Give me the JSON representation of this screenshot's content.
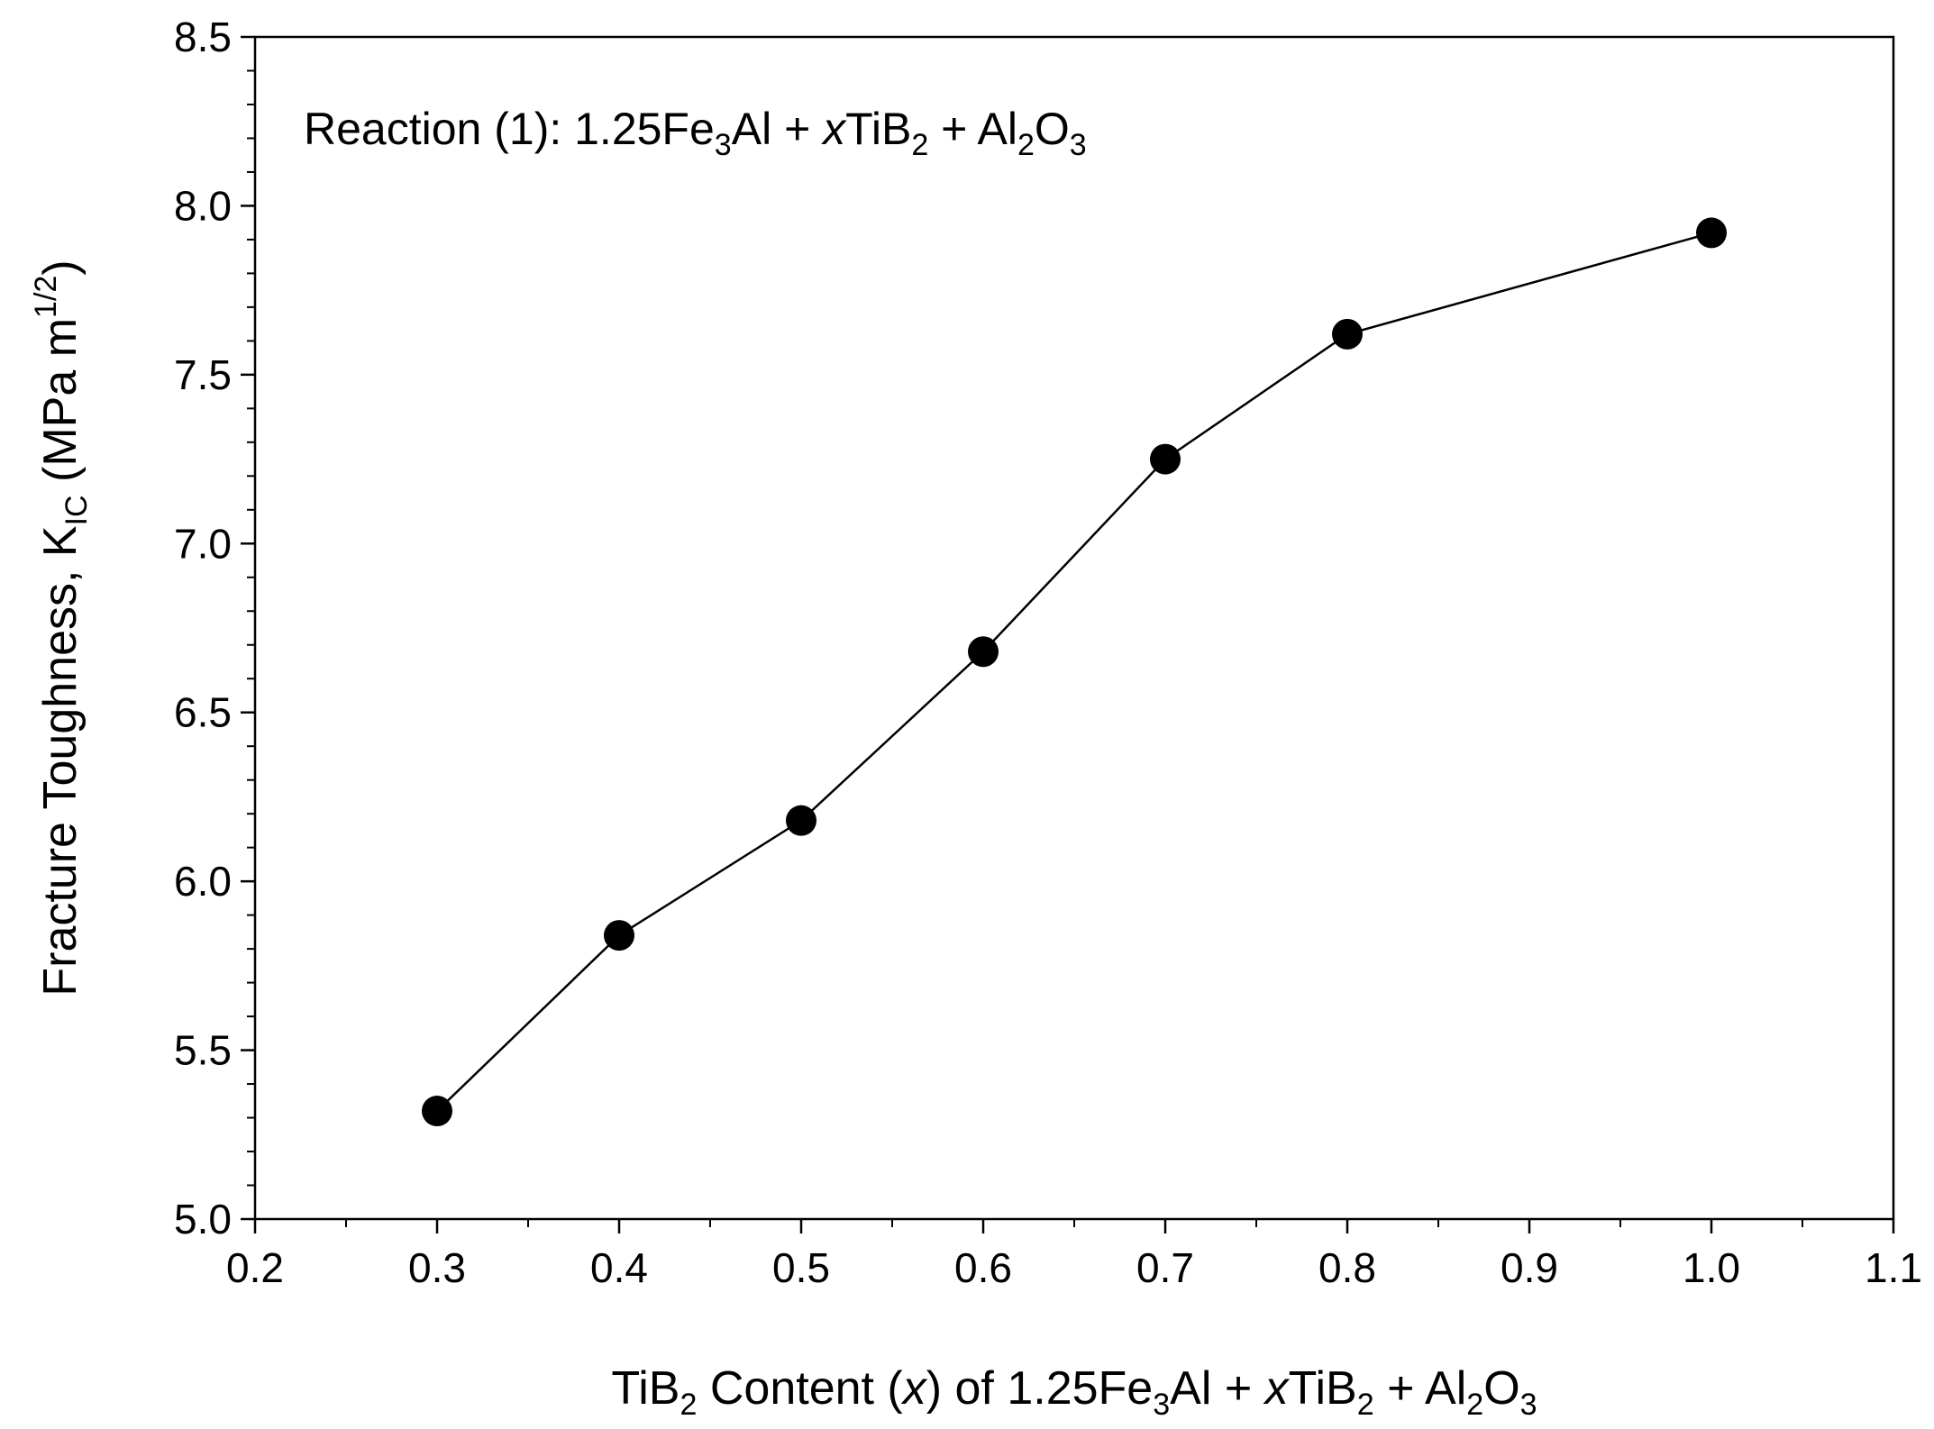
{
  "chart_data": {
    "type": "line",
    "x": [
      0.3,
      0.4,
      0.5,
      0.6,
      0.7,
      0.8,
      1.0
    ],
    "series": [
      {
        "values": [
          5.32,
          5.84,
          6.18,
          6.68,
          7.25,
          7.62,
          7.92
        ]
      }
    ],
    "xlim": [
      0.2,
      1.1
    ],
    "ylim": [
      5.0,
      8.5
    ],
    "x_ticks": [
      "0.2",
      "0.3",
      "0.4",
      "0.5",
      "0.6",
      "0.7",
      "0.8",
      "0.9",
      "1.0",
      "1.1"
    ],
    "y_ticks": [
      "5.0",
      "5.5",
      "6.0",
      "6.5",
      "7.0",
      "7.5",
      "8.0",
      "8.5"
    ],
    "xlabel": {
      "p1": "TiB",
      "s1": "2",
      "p2": " Content (",
      "p3": "x",
      "p4": ") of 1.25Fe",
      "s2": "3",
      "p5": "Al + ",
      "p6": "x",
      "p7": "TiB",
      "s3": "2",
      "p8": " + Al",
      "s4": "2",
      "p9": "O",
      "s5": "3"
    },
    "ylabel": {
      "p1": "Fracture Toughness, K",
      "s1": "IC",
      "p2": " (MPa m",
      "sup1": "1/2",
      "p3": ")"
    },
    "annotation": {
      "p1": "Reaction (1): 1.25Fe",
      "s1": "3",
      "p2": "Al + ",
      "p3": "x",
      "p4": "TiB",
      "s2": "2",
      "p5": " + Al",
      "s3": "2",
      "p6": "O",
      "s4": "3"
    },
    "marker": "filled-circle",
    "line_color": "#000000",
    "marker_color": "#000000",
    "grid": false,
    "legend": "none"
  }
}
